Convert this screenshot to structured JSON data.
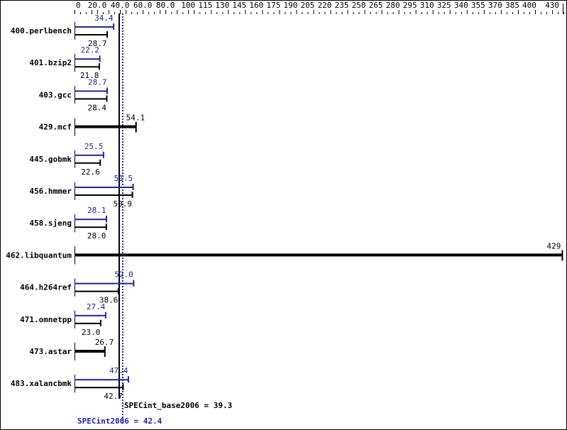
{
  "chart_data": {
    "type": "bar",
    "orientation": "horizontal",
    "xlim": [
      0,
      430
    ],
    "x_ticks": [
      "0",
      "20.0",
      "40.0",
      "60.0",
      "80.0",
      "100",
      "115",
      "130",
      "145",
      "160",
      "175",
      "190",
      "205",
      "220",
      "235",
      "250",
      "265",
      "280",
      "295",
      "310",
      "325",
      "340",
      "355",
      "370",
      "385",
      "400",
      "430"
    ],
    "tick_values": [
      0,
      20,
      40,
      60,
      80,
      100,
      115,
      130,
      145,
      160,
      175,
      190,
      205,
      220,
      235,
      250,
      265,
      280,
      295,
      310,
      325,
      340,
      355,
      370,
      385,
      400,
      430
    ],
    "categories": [
      "400.perlbench",
      "401.bzip2",
      "403.gcc",
      "429.mcf",
      "445.gobmk",
      "456.hmmer",
      "458.sjeng",
      "462.libquantum",
      "464.h264ref",
      "471.omnetpp",
      "473.astar",
      "483.xalancbmk"
    ],
    "series": [
      {
        "key": "peak",
        "values": [
          34.4,
          22.2,
          28.7,
          null,
          25.5,
          51.5,
          28.1,
          null,
          52.0,
          27.4,
          null,
          47.4
        ],
        "labels": [
          "34.4",
          "22.2",
          "28.7",
          "",
          "25.5",
          "51.5",
          "28.1",
          "",
          "52.0",
          "27.4",
          "",
          "47.4"
        ],
        "color": "#2222aa"
      },
      {
        "key": "base",
        "values": [
          28.7,
          21.8,
          28.4,
          54.1,
          22.6,
          50.9,
          28.0,
          429,
          38.6,
          23.0,
          26.7,
          42.7
        ],
        "labels": [
          "28.7",
          "21.8",
          "28.4",
          "54.1",
          "22.6",
          "50.9",
          "28.0",
          "429",
          "38.6",
          "23.0",
          "26.7",
          "42.7"
        ],
        "color": "#000000"
      }
    ],
    "reference_lines": [
      {
        "key": "base",
        "value": 39.3,
        "label": "SPECint_base2006 = 39.3",
        "color": "#000000",
        "style": "solid"
      },
      {
        "key": "peak",
        "value": 42.4,
        "label": "SPECint2006 = 42.4",
        "color": "#2222aa",
        "style": "dotted"
      }
    ],
    "grid": false,
    "legend": "none"
  }
}
